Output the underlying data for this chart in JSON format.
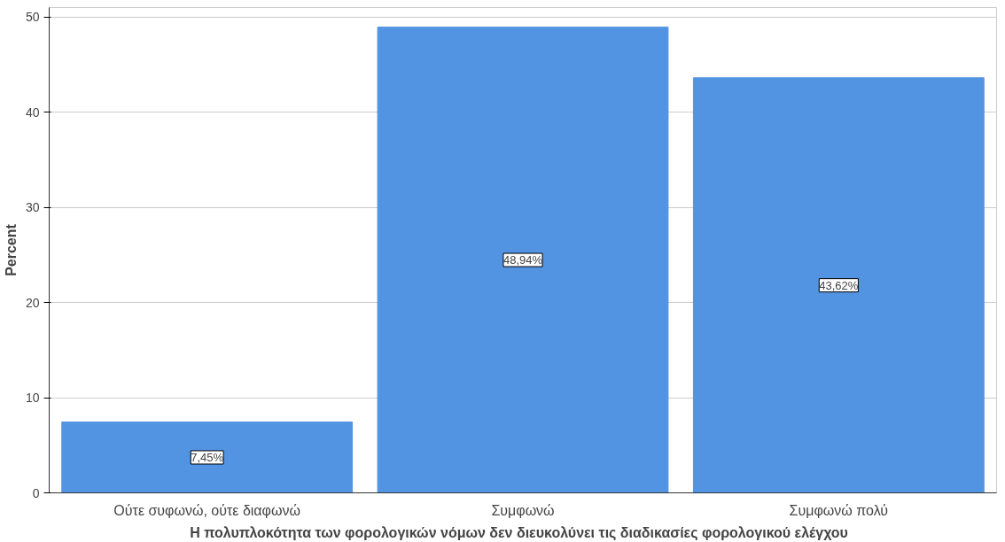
{
  "chart_data": {
    "type": "bar",
    "xlabel": "Η πολυπλοκότητα των φορολογικών νόμων  δεν διευκολύνει τις διαδικασίες φορολογικού  ελέγχου",
    "ylabel": "Percent",
    "categories": [
      "Ούτε συφωνώ, ούτε διαφωνώ",
      "Συμφωνώ",
      "Συμφωνώ πολύ"
    ],
    "values": [
      7.45,
      48.94,
      43.62
    ],
    "value_labels": [
      "7,45%",
      "48,94%",
      "43,62%"
    ],
    "color": "#5294e2",
    "ylim": [
      0,
      51
    ],
    "yticks": [
      0,
      10,
      20,
      30,
      40,
      50
    ],
    "grid": "y"
  }
}
